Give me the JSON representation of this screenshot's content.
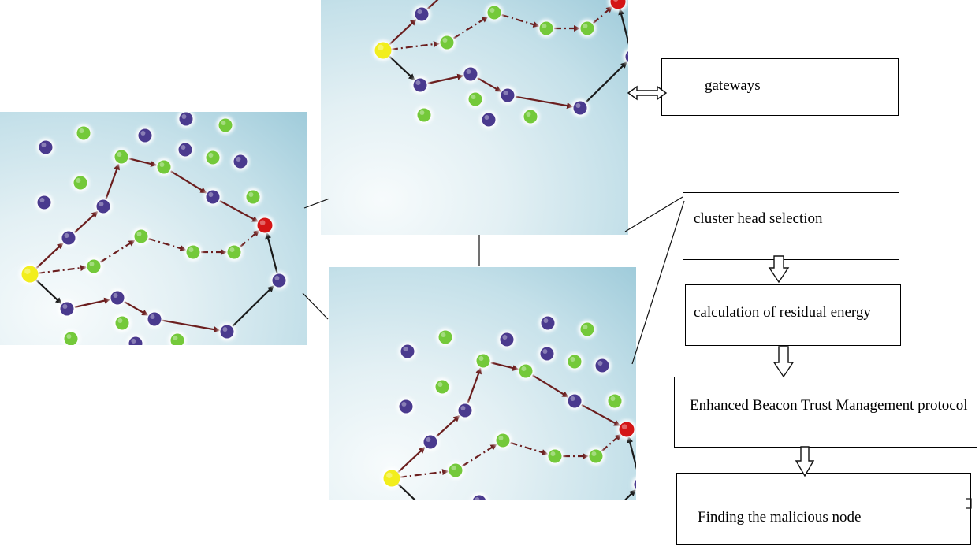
{
  "flow": {
    "gateways": "gateways",
    "cluster_head_selection": "cluster head selection",
    "residual_energy": "calculation of residual energy",
    "ebtm_protocol": "Enhanced Beacon Trust Management protocol",
    "malicious_node": "Finding the malicious node"
  },
  "colors": {
    "source_node": "#f2ee1c",
    "destination_node": "#d41515",
    "green_node": "#74c93a",
    "purple_node": "#4a3a8e",
    "edge": "#6b1e1e"
  }
}
